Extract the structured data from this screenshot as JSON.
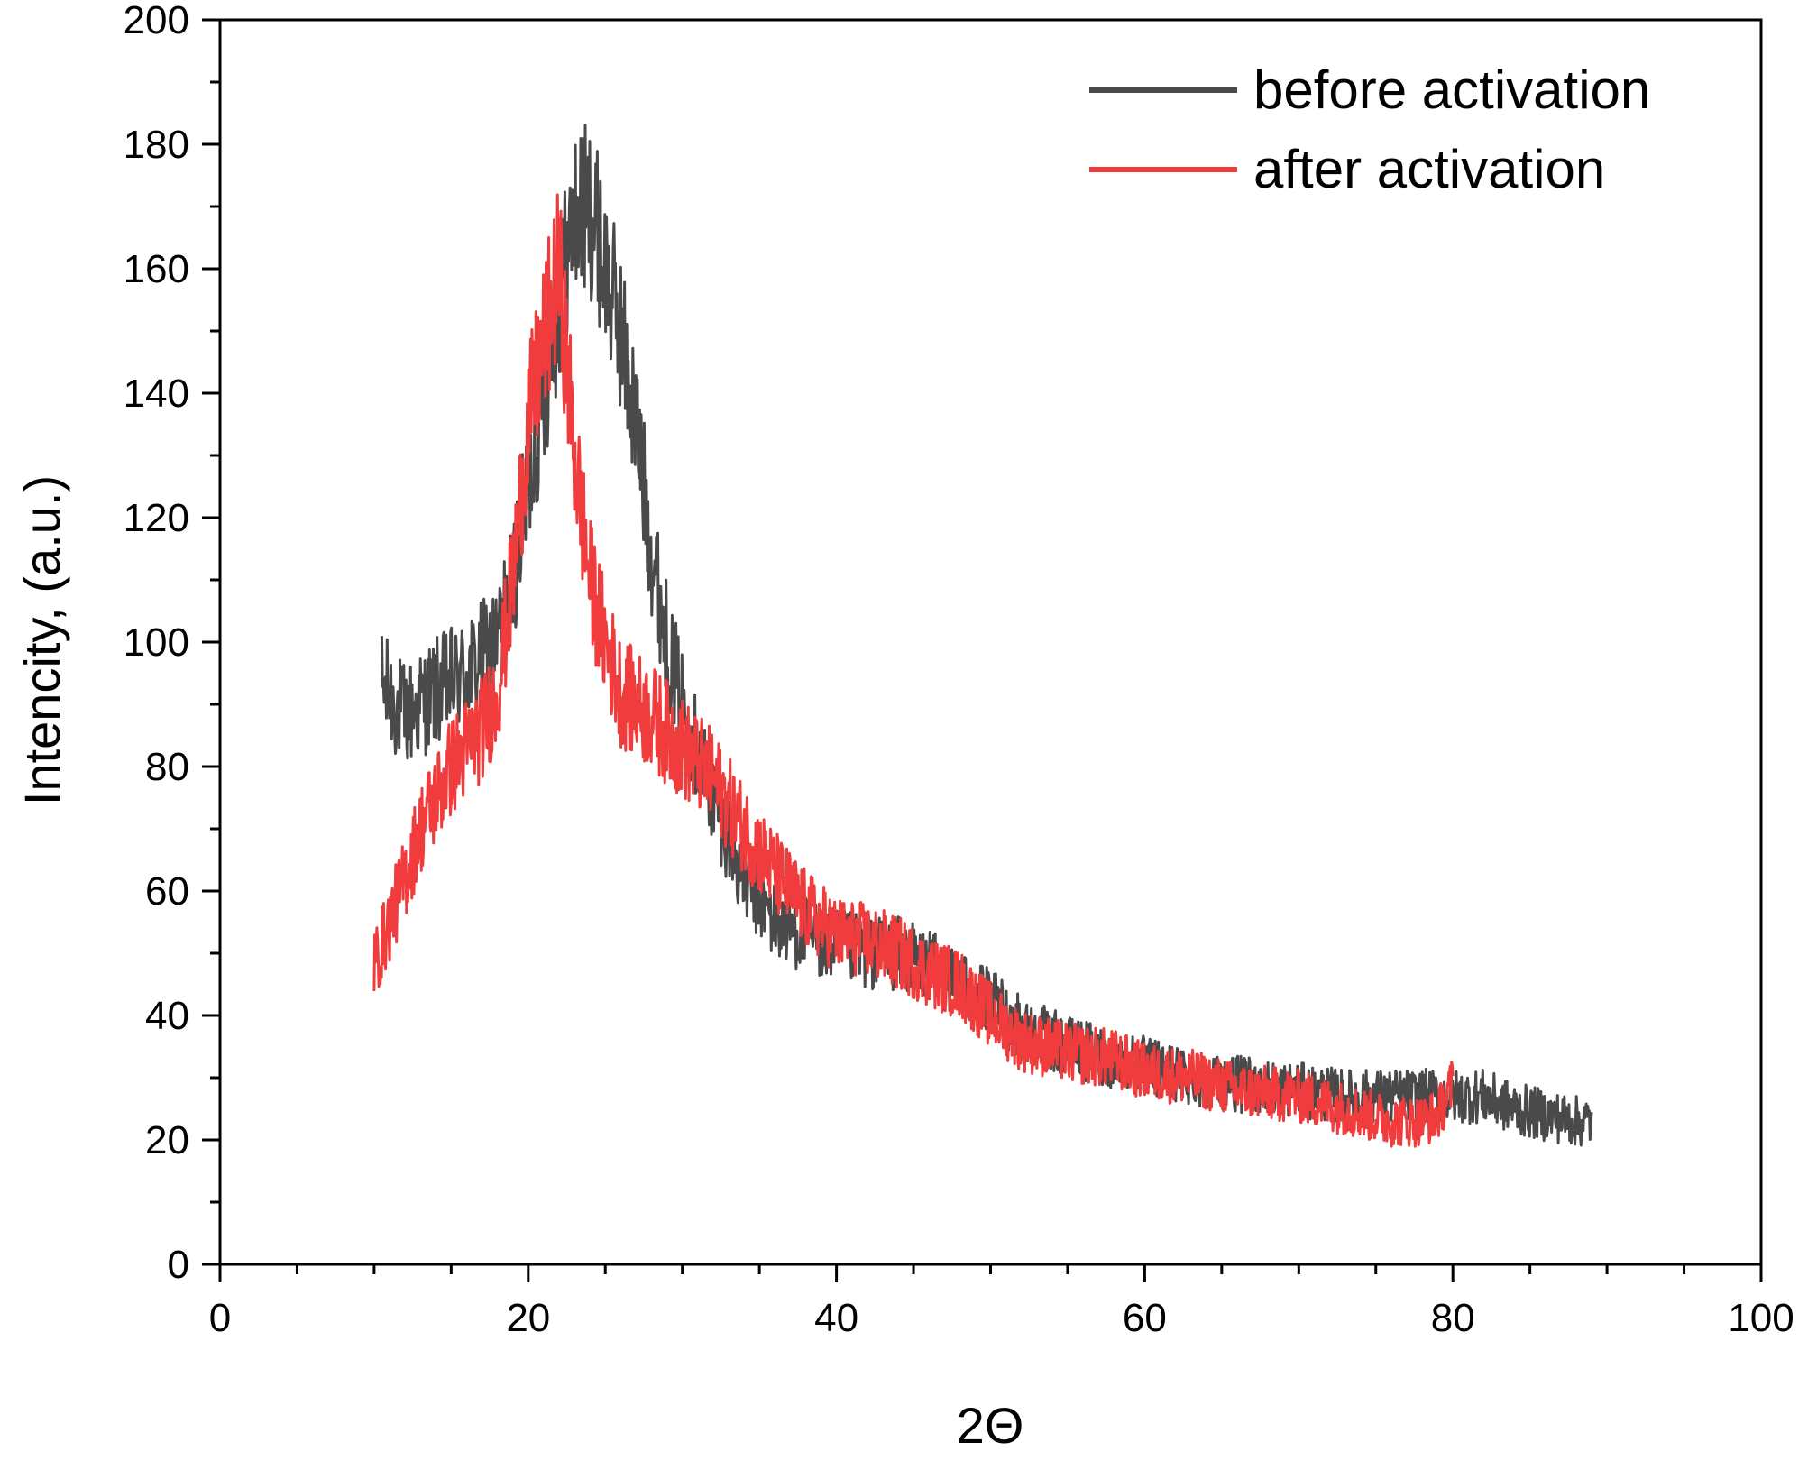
{
  "chart_data": {
    "type": "line",
    "title": "",
    "xlabel": "2Θ",
    "ylabel": "Intencity, (a.u.)",
    "xlim": [
      0,
      100
    ],
    "ylim": [
      0,
      200
    ],
    "x_ticks": [
      0,
      20,
      40,
      60,
      80,
      100
    ],
    "y_ticks": [
      0,
      20,
      40,
      60,
      80,
      100,
      120,
      140,
      160,
      180,
      200
    ],
    "x_tick_labels": [
      "0",
      "20",
      "40",
      "60",
      "80",
      "100"
    ],
    "y_tick_labels": [
      "0",
      "20",
      "40",
      "60",
      "80",
      "100",
      "120",
      "140",
      "160",
      "180",
      "200"
    ],
    "grid": false,
    "legend_position": "top-right",
    "series": [
      {
        "name": "before activation",
        "color": "#4a4a4a",
        "x": [
          10.5,
          12,
          14,
          16,
          18,
          19,
          20,
          21,
          22,
          23,
          24,
          25,
          26,
          27,
          28,
          29,
          30,
          32,
          34,
          36,
          38,
          40,
          42,
          44,
          46,
          48,
          50,
          52,
          55,
          58,
          60,
          63,
          66,
          70,
          73,
          76,
          78,
          80,
          82,
          84,
          86,
          88,
          89
        ],
        "y": [
          93,
          88,
          92,
          95,
          100,
          110,
          125,
          140,
          155,
          168,
          170,
          160,
          150,
          135,
          115,
          100,
          90,
          75,
          62,
          55,
          53,
          51,
          50,
          50,
          48,
          45,
          42,
          38,
          35,
          33,
          32,
          30,
          29,
          28,
          27,
          27,
          27,
          27,
          27,
          25,
          24,
          23,
          23
        ]
      },
      {
        "name": "after activation",
        "color": "#f03c3c",
        "x": [
          10,
          11,
          12,
          13,
          14,
          15,
          16,
          17,
          18,
          19,
          20,
          21,
          22,
          23,
          24,
          25,
          26,
          27,
          28,
          30,
          32,
          34,
          36,
          38,
          40,
          42,
          44,
          46,
          48,
          50,
          52,
          55,
          58,
          60,
          63,
          66,
          70,
          73,
          76,
          78,
          79,
          80
        ],
        "y": [
          48,
          55,
          62,
          70,
          75,
          80,
          83,
          86,
          92,
          110,
          135,
          148,
          160,
          130,
          110,
          100,
          92,
          90,
          88,
          83,
          78,
          70,
          63,
          57,
          53,
          52,
          50,
          47,
          45,
          40,
          36,
          34,
          33,
          31,
          30,
          28,
          27,
          25,
          23,
          23,
          24,
          29
        ]
      }
    ]
  }
}
